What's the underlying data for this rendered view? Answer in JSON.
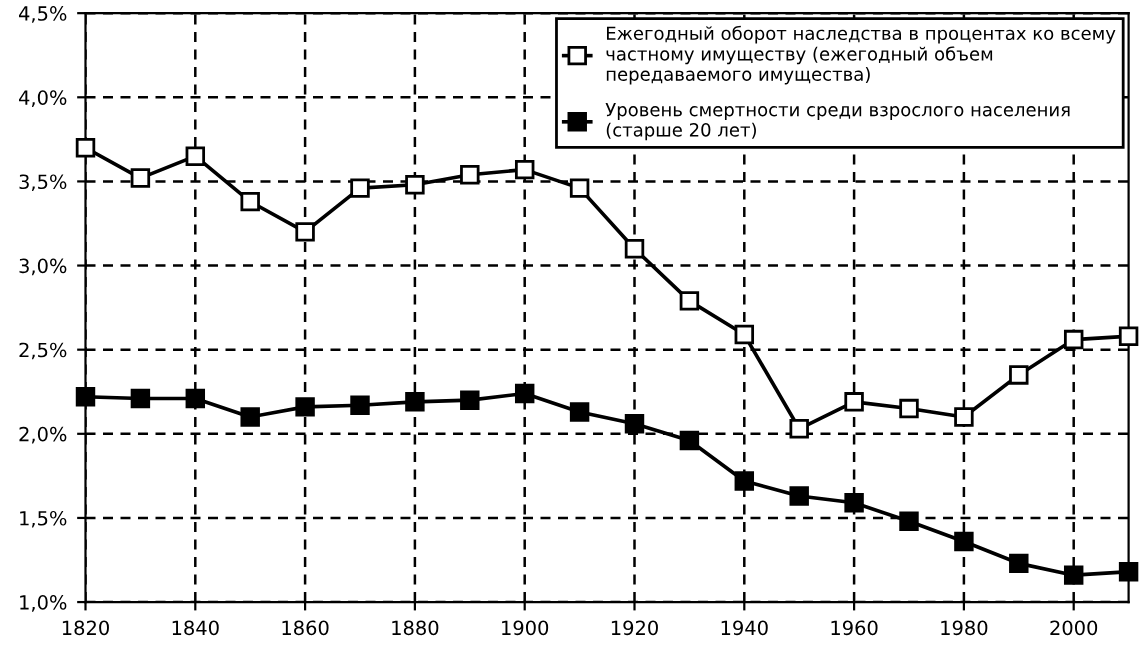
{
  "chart_data": {
    "type": "line",
    "x": [
      1820,
      1830,
      1840,
      1850,
      1860,
      1870,
      1880,
      1890,
      1900,
      1910,
      1920,
      1930,
      1940,
      1950,
      1960,
      1970,
      1980,
      1990,
      2000,
      2010
    ],
    "series": [
      {
        "name": "Ежегодный оборот наследства в процентах ко всему частному имуществу (ежегодный объем передаваемого имущества)",
        "color": "#000000",
        "marker": "square",
        "values": [
          3.7,
          3.52,
          3.65,
          3.38,
          3.2,
          3.46,
          3.48,
          3.54,
          3.57,
          3.46,
          3.1,
          2.79,
          2.59,
          2.03,
          2.19,
          2.15,
          2.1,
          2.35,
          2.56,
          2.58
        ]
      },
      {
        "name": "Уровень смертности среди взрослого населения (старше 20 лет)",
        "color": "#000000",
        "marker": "square",
        "values": [
          2.22,
          2.21,
          2.21,
          2.1,
          2.16,
          2.17,
          2.19,
          2.2,
          2.24,
          2.13,
          2.06,
          1.96,
          1.72,
          1.63,
          1.59,
          1.48,
          1.36,
          1.23,
          1.16,
          1.18
        ]
      }
    ],
    "xlim": [
      1820,
      2010
    ],
    "xticks": [
      1820,
      1840,
      1860,
      1880,
      1900,
      1920,
      1940,
      1960,
      1980,
      2000
    ],
    "ylim": [
      1.0,
      4.5
    ],
    "yticks": [
      {
        "value": 1.0,
        "label": "1,0%"
      },
      {
        "value": 1.5,
        "label": "1,5%"
      },
      {
        "value": 2.0,
        "label": "2,0%"
      },
      {
        "value": 2.5,
        "label": "2,5%"
      },
      {
        "value": 3.0,
        "label": "3,0%"
      },
      {
        "value": 3.5,
        "label": "3,5%"
      },
      {
        "value": 4.0,
        "label": "4,0%"
      },
      {
        "value": 4.5,
        "label": "4,5%"
      }
    ],
    "grid": true,
    "legend": "top right",
    "line_style": "solid"
  }
}
